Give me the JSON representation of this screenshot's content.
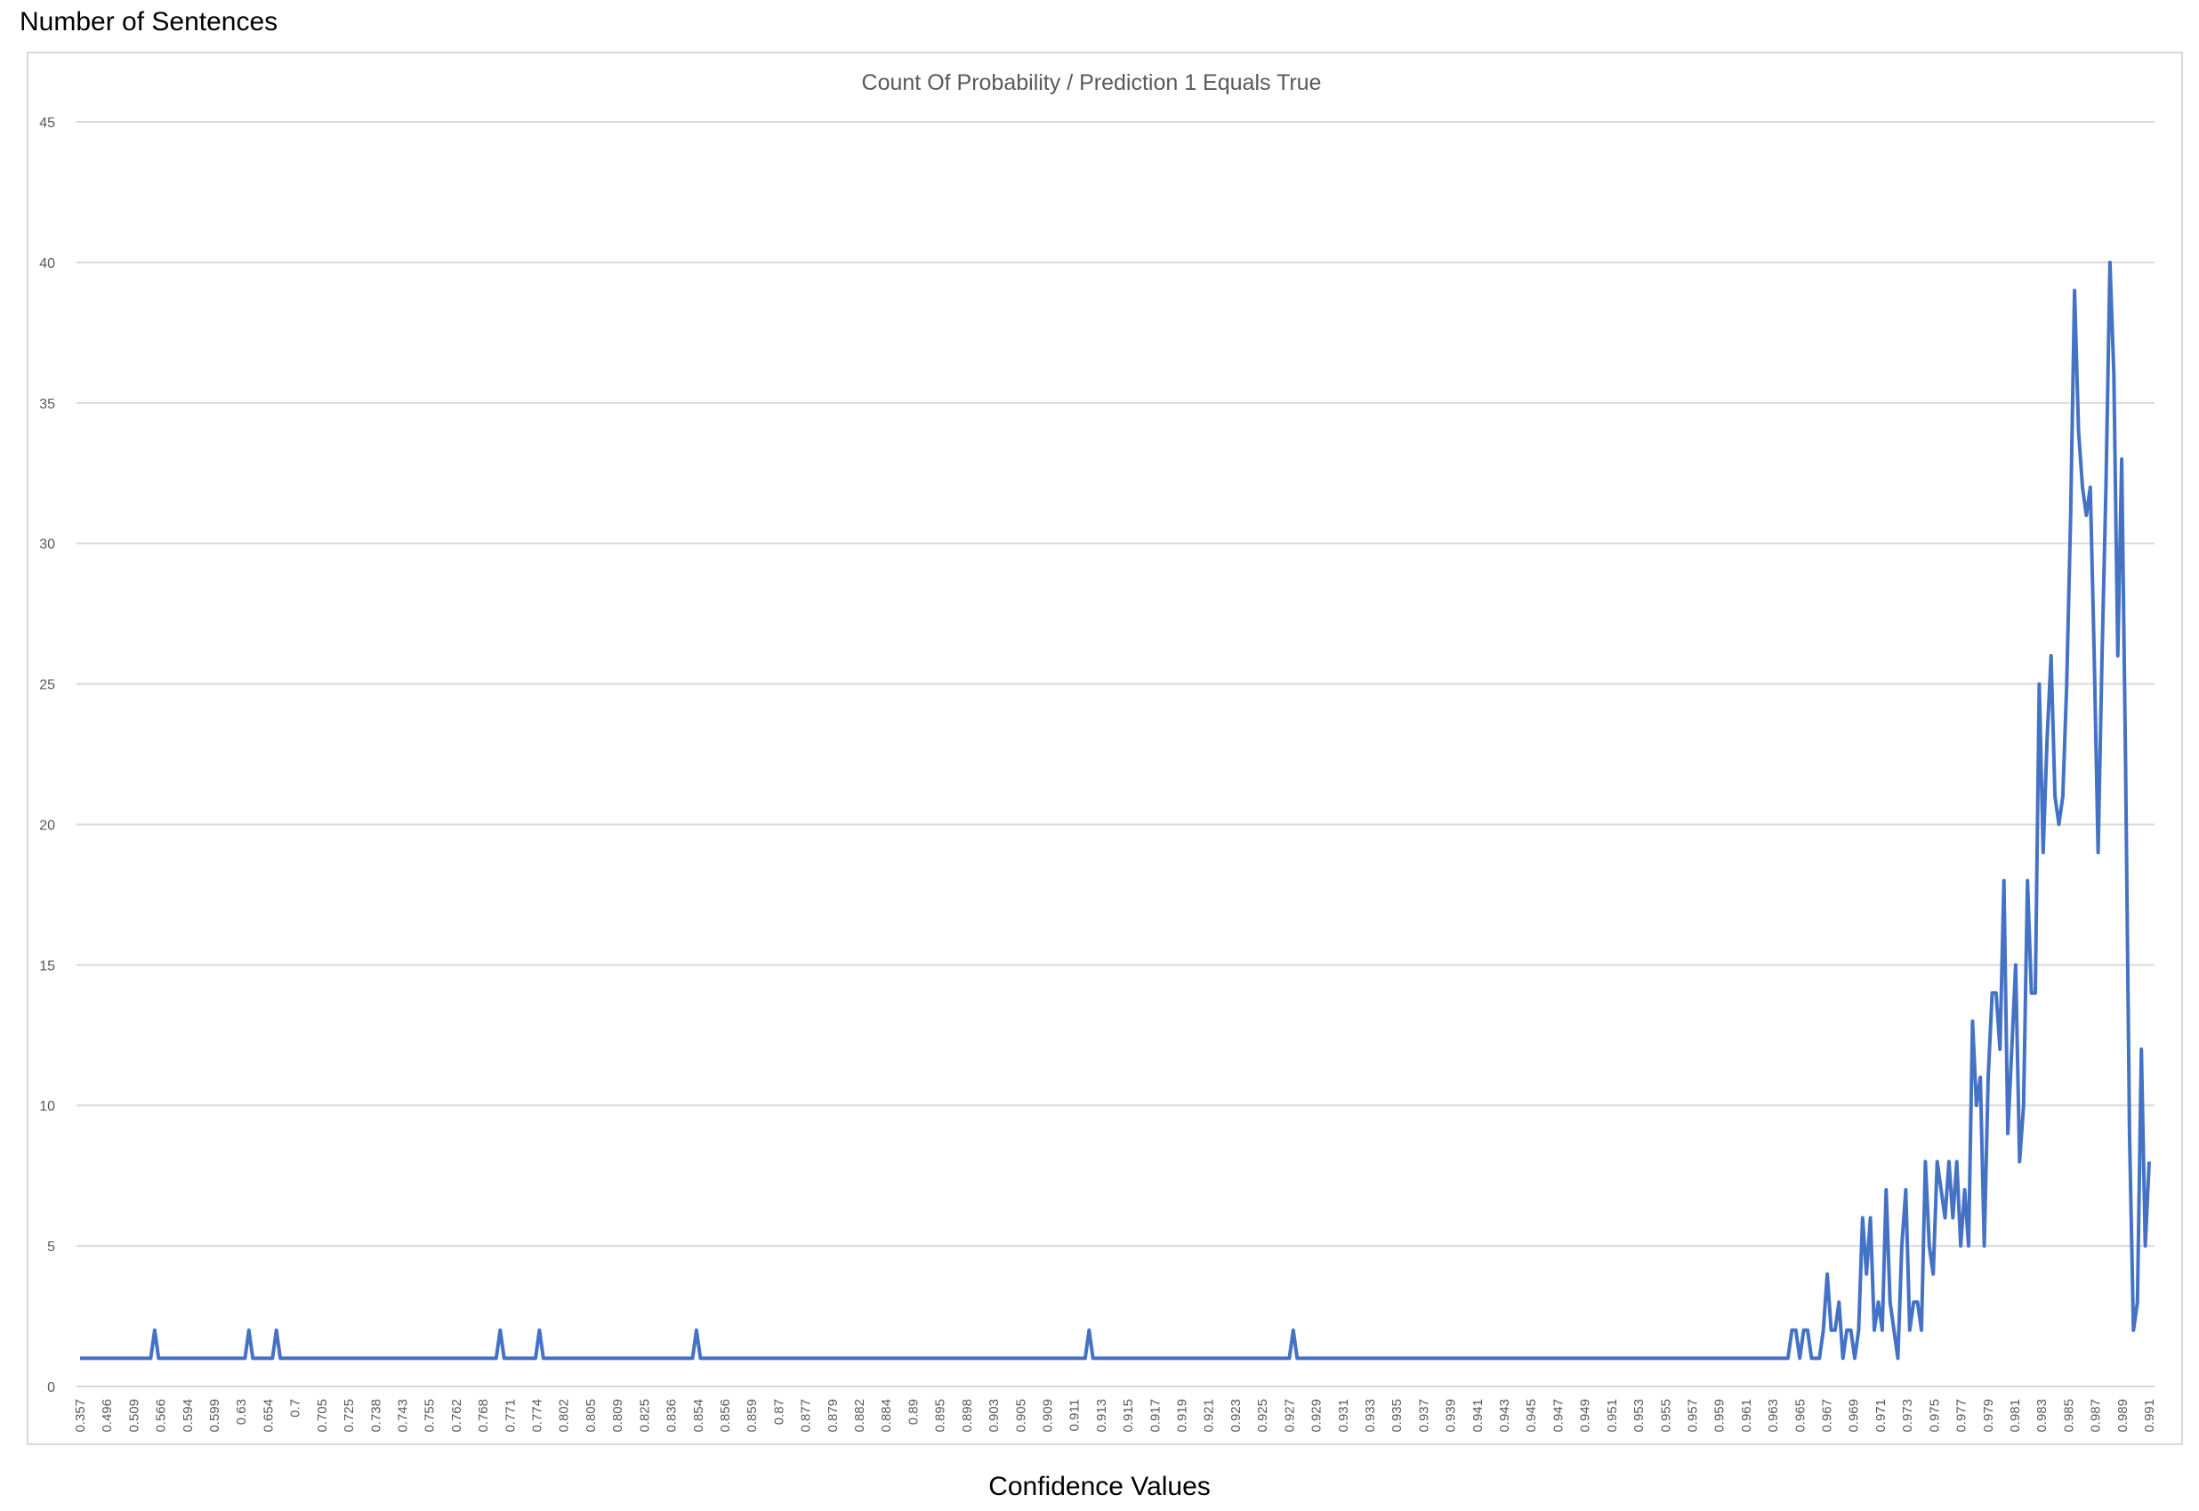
{
  "outer": {
    "y_label": "Number of Sentences",
    "x_label": "Confidence Values"
  },
  "colors": {
    "line": "#4472c4",
    "grid": "#d9d9d9",
    "tick_text": "#595959",
    "title": "#595959"
  },
  "chart_data": {
    "type": "line",
    "title": "Count Of Probability / Prediction 1 Equals True",
    "xlabel": "Confidence Values",
    "ylabel": "Number of Sentences",
    "ylim": [
      0,
      45
    ],
    "yticks": [
      0,
      5,
      10,
      15,
      20,
      25,
      30,
      35,
      40,
      45
    ],
    "grid": true,
    "legend": "none",
    "x_tick_labels": [
      "0.357",
      "0.496",
      "0.509",
      "0.566",
      "0.594",
      "0.599",
      "0.63",
      "0.654",
      "0.7",
      "0.705",
      "0.725",
      "0.738",
      "0.743",
      "0.755",
      "0.762",
      "0.768",
      "0.771",
      "0.774",
      "0.802",
      "0.805",
      "0.809",
      "0.825",
      "0.836",
      "0.854",
      "0.856",
      "0.859",
      "0.87",
      "0.877",
      "0.879",
      "0.882",
      "0.884",
      "0.89",
      "0.895",
      "0.898",
      "0.903",
      "0.905",
      "0.909",
      "0.911",
      "0.913",
      "0.915",
      "0.917",
      "0.919",
      "0.921",
      "0.923",
      "0.925",
      "0.927",
      "0.929",
      "0.931",
      "0.933",
      "0.935",
      "0.937",
      "0.939",
      "0.941",
      "0.943",
      "0.945",
      "0.947",
      "0.949",
      "0.951",
      "0.953",
      "0.955",
      "0.957",
      "0.959",
      "0.961",
      "0.963",
      "0.965",
      "0.967",
      "0.969",
      "0.971",
      "0.973",
      "0.975",
      "0.977",
      "0.979",
      "0.981",
      "0.983",
      "0.985",
      "0.987",
      "0.989",
      "0.991"
    ],
    "series": [
      {
        "values": [
          1,
          1,
          1,
          1,
          1,
          1,
          1,
          1,
          1,
          1,
          1,
          1,
          1,
          1,
          1,
          1,
          1,
          1,
          1,
          2,
          1,
          1,
          1,
          1,
          1,
          1,
          1,
          1,
          1,
          1,
          1,
          1,
          1,
          1,
          1,
          1,
          1,
          1,
          1,
          1,
          1,
          1,
          1,
          2,
          1,
          1,
          1,
          1,
          1,
          1,
          2,
          1,
          1,
          1,
          1,
          1,
          1,
          1,
          1,
          1,
          1,
          1,
          1,
          1,
          1,
          1,
          1,
          1,
          1,
          1,
          1,
          1,
          1,
          1,
          1,
          1,
          1,
          1,
          1,
          1,
          1,
          1,
          1,
          1,
          1,
          1,
          1,
          1,
          1,
          1,
          1,
          1,
          1,
          1,
          1,
          1,
          1,
          1,
          1,
          1,
          1,
          1,
          1,
          1,
          1,
          1,
          1,
          2,
          1,
          1,
          1,
          1,
          1,
          1,
          1,
          1,
          1,
          2,
          1,
          1,
          1,
          1,
          1,
          1,
          1,
          1,
          1,
          1,
          1,
          1,
          1,
          1,
          1,
          1,
          1,
          1,
          1,
          1,
          1,
          1,
          1,
          1,
          1,
          1,
          1,
          1,
          1,
          1,
          1,
          1,
          1,
          1,
          1,
          1,
          1,
          1,
          1,
          2,
          1,
          1,
          1,
          1,
          1,
          1,
          1,
          1,
          1,
          1,
          1,
          1,
          1,
          1,
          1,
          1,
          1,
          1,
          1,
          1,
          1,
          1,
          1,
          1,
          1,
          1,
          1,
          1,
          1,
          1,
          1,
          1,
          1,
          1,
          1,
          1,
          1,
          1,
          1,
          1,
          1,
          1,
          1,
          1,
          1,
          1,
          1,
          1,
          1,
          1,
          1,
          1,
          1,
          1,
          1,
          1,
          1,
          1,
          1,
          1,
          1,
          1,
          1,
          1,
          1,
          1,
          1,
          1,
          1,
          1,
          1,
          1,
          1,
          1,
          1,
          1,
          1,
          1,
          1,
          1,
          1,
          1,
          1,
          1,
          1,
          1,
          1,
          1,
          1,
          1,
          1,
          1,
          1,
          1,
          1,
          1,
          1,
          1,
          1,
          2,
          1,
          1,
          1,
          1,
          1,
          1,
          1,
          1,
          1,
          1,
          1,
          1,
          1,
          1,
          1,
          1,
          1,
          1,
          1,
          1,
          1,
          1,
          1,
          1,
          1,
          1,
          1,
          1,
          1,
          1,
          1,
          1,
          1,
          1,
          1,
          1,
          1,
          1,
          1,
          1,
          1,
          1,
          1,
          1,
          1,
          1,
          1,
          1,
          1,
          1,
          1,
          2,
          1,
          1,
          1,
          1,
          1,
          1,
          1,
          1,
          1,
          1,
          1,
          1,
          1,
          1,
          1,
          1,
          1,
          1,
          1,
          1,
          1,
          1,
          1,
          1,
          1,
          1,
          1,
          1,
          1,
          1,
          1,
          1,
          1,
          1,
          1,
          1,
          1,
          1,
          1,
          1,
          1,
          1,
          1,
          1,
          1,
          1,
          1,
          1,
          1,
          1,
          1,
          1,
          1,
          1,
          1,
          1,
          1,
          1,
          1,
          1,
          1,
          1,
          1,
          1,
          1,
          1,
          1,
          1,
          1,
          1,
          1,
          1,
          1,
          1,
          1,
          1,
          1,
          1,
          1,
          1,
          1,
          1,
          1,
          1,
          1,
          1,
          1,
          1,
          1,
          1,
          1,
          1,
          1,
          1,
          1,
          1,
          1,
          1,
          1,
          1,
          1,
          1,
          1,
          1,
          1,
          1,
          1,
          1,
          1,
          1,
          1,
          1,
          1,
          1,
          1,
          1,
          1,
          1,
          1,
          1,
          1,
          1,
          1,
          1,
          1,
          1,
          2,
          2,
          1,
          2,
          2,
          1,
          1,
          1,
          2,
          4,
          2,
          2,
          3,
          1,
          2,
          2,
          1,
          2,
          6,
          4,
          6,
          2,
          3,
          2,
          7,
          3,
          2,
          1,
          5,
          7,
          2,
          3,
          3,
          2,
          8,
          5,
          4,
          8,
          7,
          6,
          8,
          6,
          8,
          5,
          7,
          5,
          13,
          10,
          11,
          5,
          11,
          14,
          14,
          12,
          18,
          9,
          12,
          15,
          8,
          10,
          18,
          14,
          14,
          25,
          19,
          23,
          26,
          21,
          20,
          21,
          25,
          31,
          39,
          34,
          32,
          31,
          32,
          26,
          19,
          26,
          32,
          40,
          36,
          26,
          33,
          22,
          9,
          2,
          3,
          12,
          5,
          8
        ]
      }
    ]
  }
}
